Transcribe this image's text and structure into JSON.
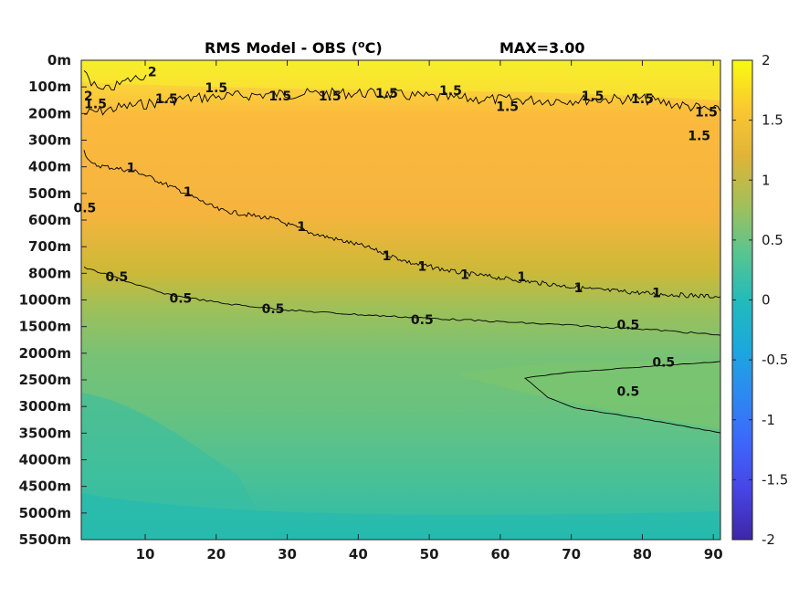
{
  "chart_data": {
    "type": "heatmap",
    "title": "RMS Model - OBS (",
    "title_unit_sup": "o",
    "title_unit_tail": "C)",
    "max_label": "MAX=3.00",
    "x": {
      "range": [
        1,
        91
      ],
      "ticks": [
        "10",
        "20",
        "30",
        "40",
        "50",
        "60",
        "70",
        "80",
        "90"
      ],
      "tick_values": [
        10,
        20,
        30,
        40,
        50,
        60,
        70,
        80,
        90
      ]
    },
    "y": {
      "ticks": [
        "0m",
        "100m",
        "200m",
        "300m",
        "400m",
        "500m",
        "600m",
        "700m",
        "800m",
        "1000m",
        "1500m",
        "2000m",
        "2500m",
        "3000m",
        "3500m",
        "4000m",
        "4500m",
        "5000m",
        "5500m"
      ]
    },
    "colorbar": {
      "range": [
        -2,
        2
      ],
      "ticks": [
        "2",
        "1.5",
        "1",
        "0.5",
        "0",
        "-0.5",
        "-1",
        "-1.5",
        "-2"
      ],
      "tick_values": [
        2,
        1.5,
        1,
        0.5,
        0,
        -0.5,
        -1,
        -1.5,
        -2
      ],
      "colormap": [
        "#3e26a8",
        "#4743e4",
        "#3e65fa",
        "#2d88f3",
        "#1ba9dc",
        "#23bbbb",
        "#5ac58f",
        "#a4bf59",
        "#dfb438",
        "#fbc832",
        "#f9fb0e"
      ]
    },
    "contours": [
      {
        "level": 1.5,
        "label": "1.5"
      },
      {
        "level": 1,
        "label": "1"
      },
      {
        "level": 0.5,
        "label": "0.5"
      }
    ],
    "contour_labels": [
      {
        "text": "1.5",
        "x": 3,
        "y": 1.7
      },
      {
        "text": "2",
        "x": 2,
        "y": 1.4
      },
      {
        "text": "2",
        "x": 11,
        "y": 0.5
      },
      {
        "text": "1.5",
        "x": 13,
        "y": 1.5
      },
      {
        "text": "1.5",
        "x": 20,
        "y": 1.1
      },
      {
        "text": "1.5",
        "x": 29,
        "y": 1.4
      },
      {
        "text": "1.5",
        "x": 36,
        "y": 1.4
      },
      {
        "text": "1.5",
        "x": 44,
        "y": 1.3
      },
      {
        "text": "1.5",
        "x": 53,
        "y": 1.2
      },
      {
        "text": "1.5",
        "x": 61,
        "y": 1.8
      },
      {
        "text": "1.5",
        "x": 73,
        "y": 1.4
      },
      {
        "text": "1.5",
        "x": 80,
        "y": 1.5
      },
      {
        "text": "1.5",
        "x": 89,
        "y": 2.0
      },
      {
        "text": "1.5",
        "x": 88,
        "y": 2.9
      },
      {
        "text": "1",
        "x": 8,
        "y": 4.1
      },
      {
        "text": "1",
        "x": 16,
        "y": 5.0
      },
      {
        "text": "1",
        "x": 32,
        "y": 6.3
      },
      {
        "text": "1",
        "x": 44,
        "y": 7.4
      },
      {
        "text": "1",
        "x": 49,
        "y": 7.8
      },
      {
        "text": "1",
        "x": 55,
        "y": 8.1
      },
      {
        "text": "1",
        "x": 63,
        "y": 8.2
      },
      {
        "text": "1",
        "x": 71,
        "y": 8.6
      },
      {
        "text": "1",
        "x": 82,
        "y": 8.8
      },
      {
        "text": "0.5",
        "x": 1.5,
        "y": 5.6
      },
      {
        "text": "0.5",
        "x": 6,
        "y": 8.2
      },
      {
        "text": "0.5",
        "x": 15,
        "y": 9.0
      },
      {
        "text": "0.5",
        "x": 28,
        "y": 9.4
      },
      {
        "text": "0.5",
        "x": 49,
        "y": 9.8
      },
      {
        "text": "0.5",
        "x": 78,
        "y": 10.0
      },
      {
        "text": "0.5",
        "x": 83,
        "y": 11.4
      },
      {
        "text": "0.5",
        "x": 78,
        "y": 12.5
      }
    ]
  }
}
